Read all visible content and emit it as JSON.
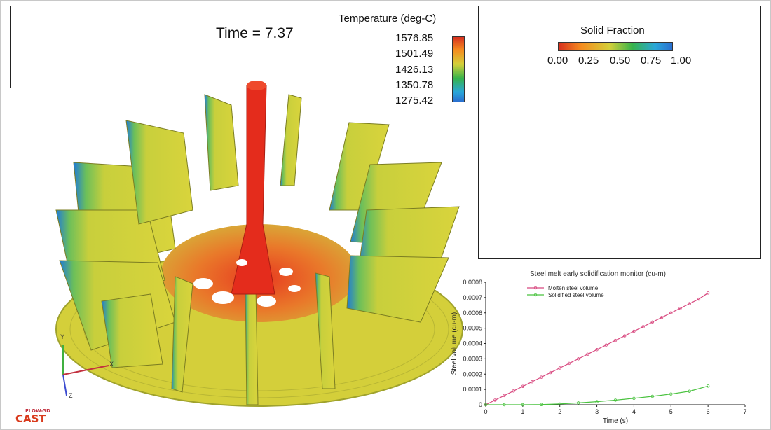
{
  "simulation": {
    "time_label": "Time = 7.37"
  },
  "temperature_legend": {
    "title": "Temperature (deg-C)",
    "ticks": [
      "1576.85",
      "1501.49",
      "1426.13",
      "1350.78",
      "1275.42"
    ]
  },
  "solid_fraction_legend": {
    "title": "Solid Fraction",
    "ticks": [
      "0.00",
      "0.25",
      "0.50",
      "0.75",
      "1.00"
    ]
  },
  "axes_triad": {
    "x_label": "X",
    "y_label": "Y",
    "z_label": "Z"
  },
  "logo": {
    "top": "FLOW-3D",
    "bottom": "CAST"
  },
  "chart_data": {
    "type": "line",
    "title": "Steel melt early solidification monitor (cu-m)",
    "xlabel": "Time (s)",
    "ylabel": "Steel volume (cu-m)",
    "xlim": [
      0,
      7
    ],
    "ylim": [
      0,
      0.0008
    ],
    "x_ticks": [
      "0",
      "1",
      "2",
      "3",
      "4",
      "5",
      "6",
      "7"
    ],
    "y_ticks": [
      "0",
      "0.0001",
      "0.0002",
      "0.0003",
      "0.0004",
      "0.0005",
      "0.0006",
      "0.0007",
      "0.0008"
    ],
    "series": [
      {
        "name": "Molten steel volume",
        "color": "#d8487f",
        "x": [
          0,
          0.25,
          0.5,
          0.75,
          1,
          1.25,
          1.5,
          1.75,
          2,
          2.25,
          2.5,
          2.75,
          3,
          3.25,
          3.5,
          3.75,
          4,
          4.25,
          4.5,
          4.75,
          5,
          5.25,
          5.5,
          5.75,
          6
        ],
        "y": [
          0,
          3e-05,
          6e-05,
          9e-05,
          0.00012,
          0.00015,
          0.00018,
          0.00021,
          0.00024,
          0.00027,
          0.0003,
          0.00033,
          0.00036,
          0.00039,
          0.00042,
          0.00045,
          0.00048,
          0.00051,
          0.00054,
          0.00057,
          0.0006,
          0.00063,
          0.00066,
          0.00069,
          0.00073
        ]
      },
      {
        "name": "Solidified steel volume",
        "color": "#49c23e",
        "x": [
          0,
          0.5,
          1,
          1.5,
          2,
          2.5,
          3,
          3.5,
          4,
          4.5,
          5,
          5.5,
          6
        ],
        "y": [
          0,
          0,
          0,
          1e-06,
          5e-06,
          1.2e-05,
          2e-05,
          3e-05,
          4.2e-05,
          5.5e-05,
          7e-05,
          8.8e-05,
          0.000122
        ]
      }
    ]
  }
}
